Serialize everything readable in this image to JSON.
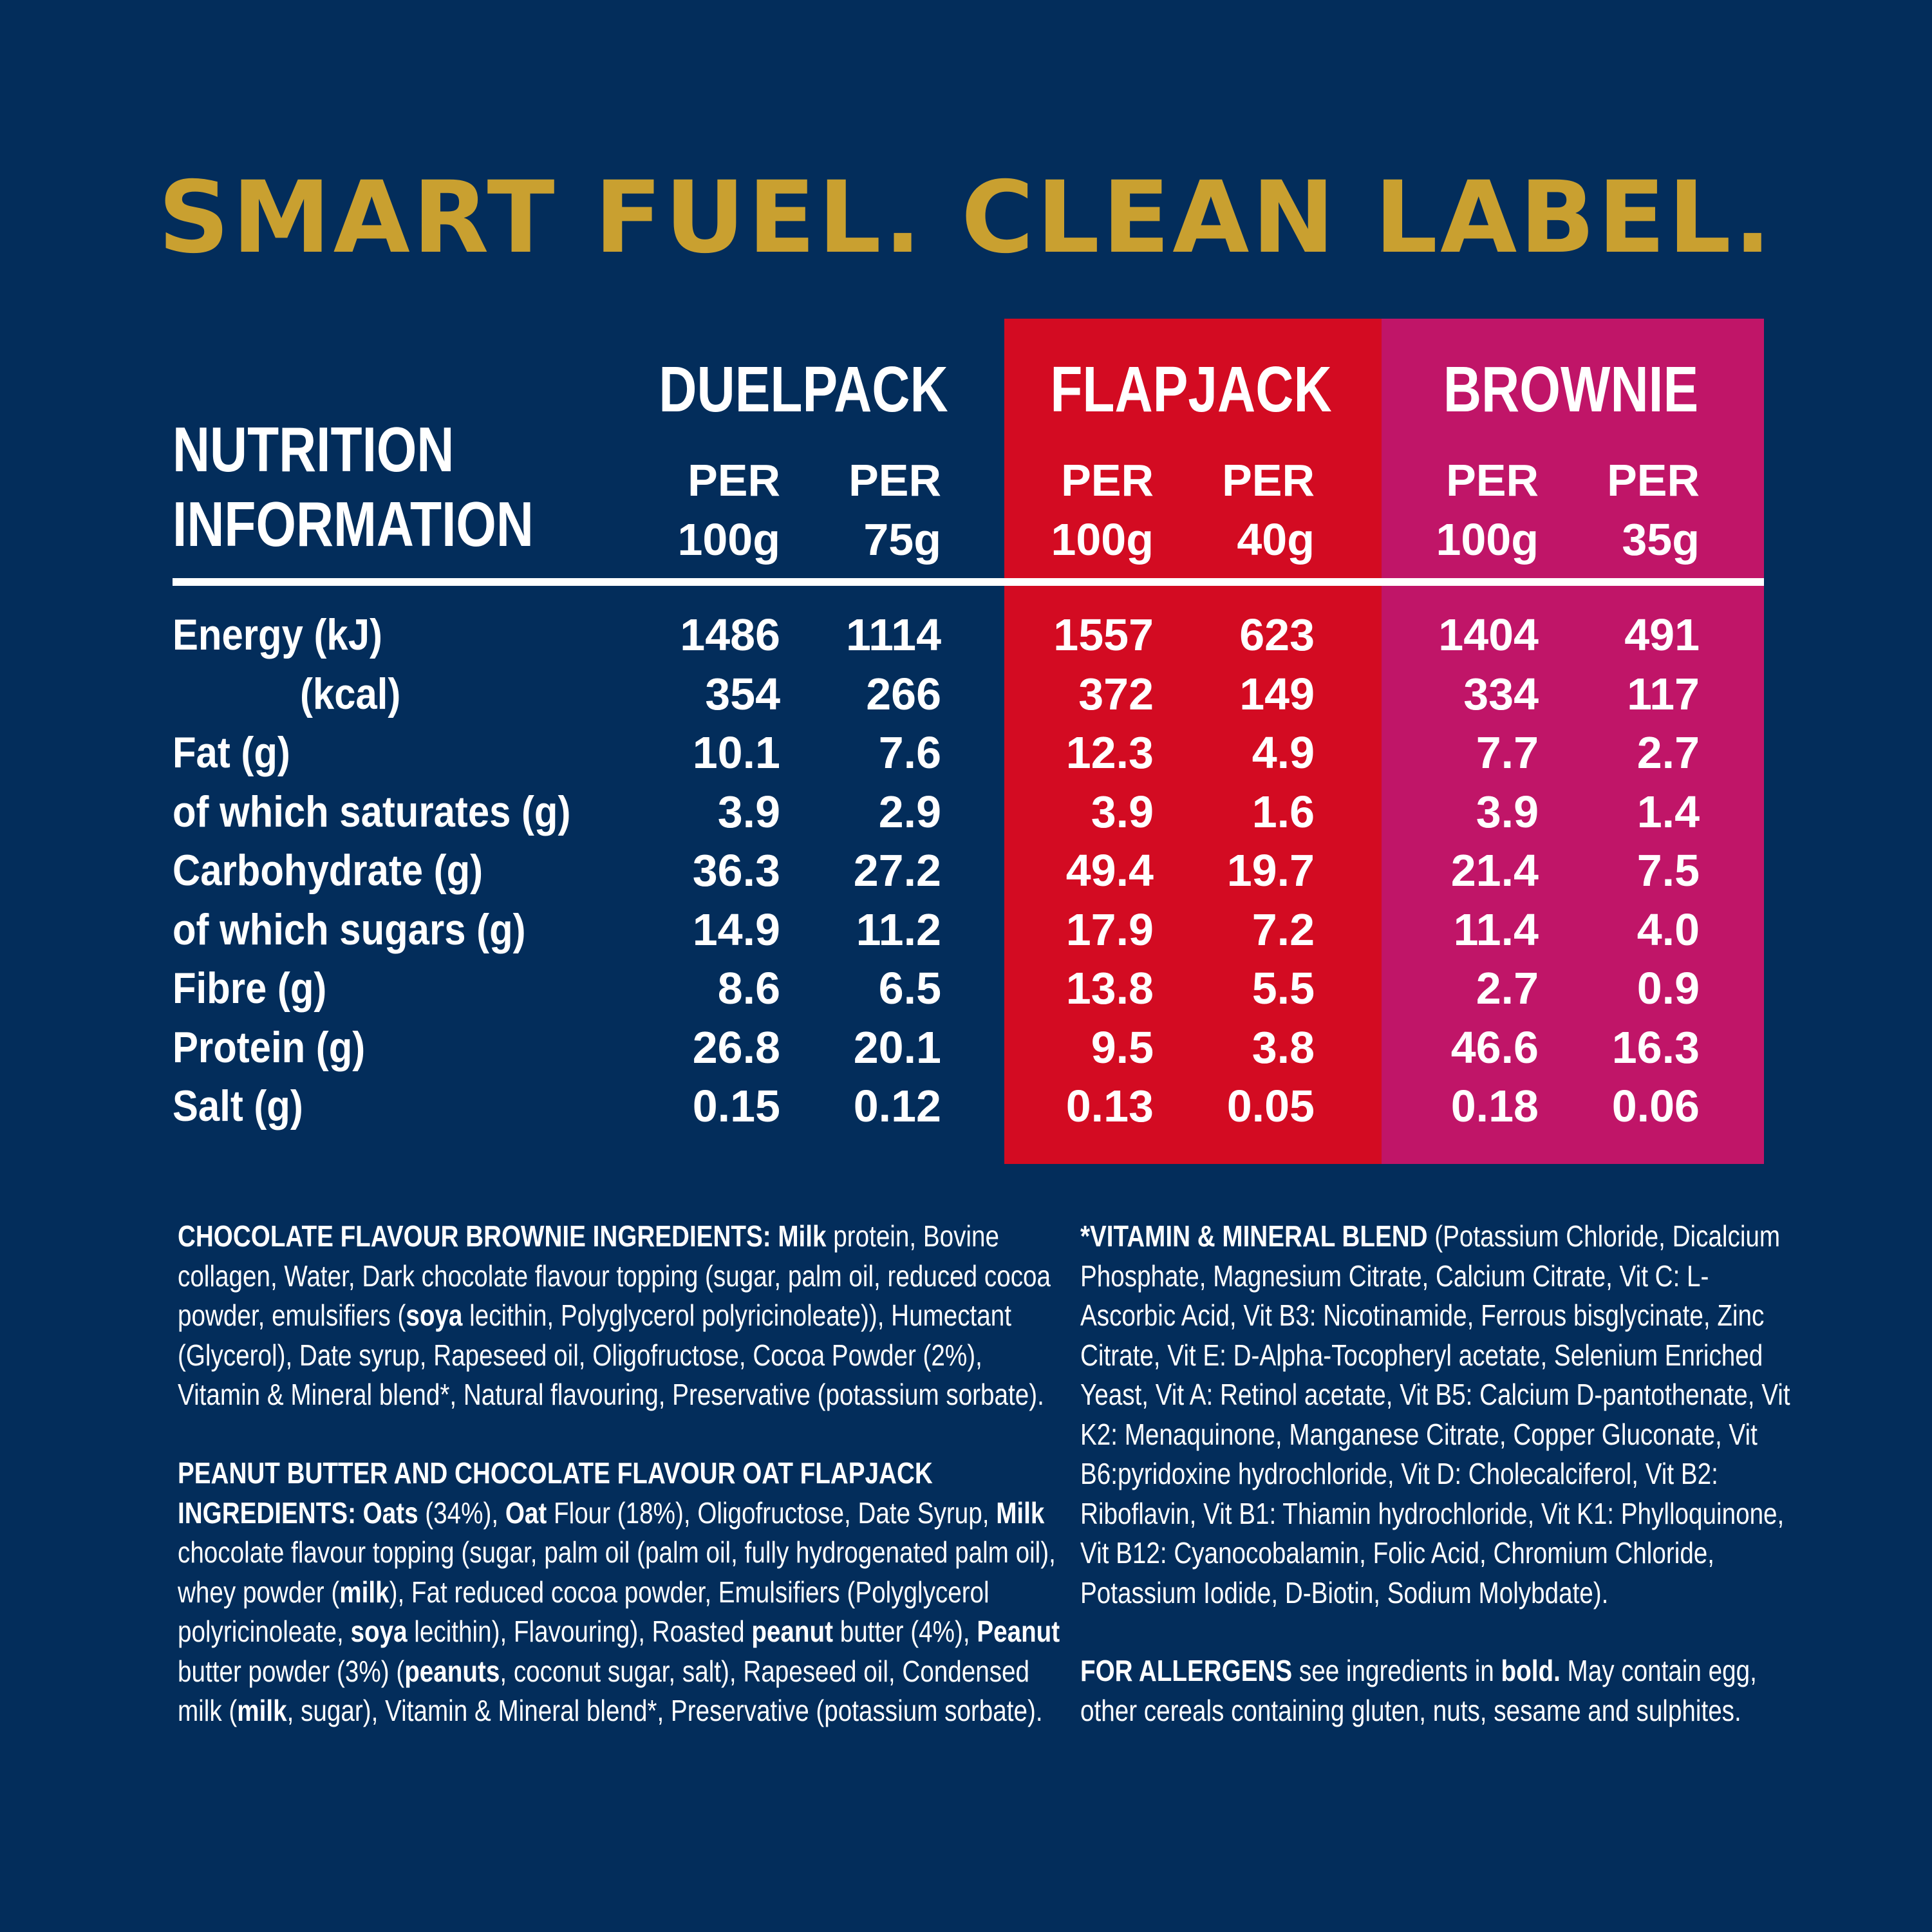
{
  "headline": "SMART FUEL. CLEAN LABEL.",
  "colors": {
    "background": "#032d5b",
    "headline": "#c9a030",
    "flapjack_column": "#d30b22",
    "brownie_column": "#c01568"
  },
  "nutrition": {
    "title_line1": "NUTRITION",
    "title_line2": "INFORMATION",
    "groups": [
      {
        "name": "DUELPACK",
        "sub": [
          {
            "top": "PER",
            "bottom": "100g"
          },
          {
            "top": "PER",
            "bottom": "75g"
          }
        ]
      },
      {
        "name": "FLAPJACK",
        "sub": [
          {
            "top": "PER",
            "bottom": "100g"
          },
          {
            "top": "PER",
            "bottom": "40g"
          }
        ]
      },
      {
        "name": "BROWNIE",
        "sub": [
          {
            "top": "PER",
            "bottom": "100g"
          },
          {
            "top": "PER",
            "bottom": "35g"
          }
        ]
      }
    ],
    "rows": [
      {
        "label": "Energy (kJ)",
        "values": [
          "1486",
          "1114",
          "1557",
          "623",
          "1404",
          "491"
        ]
      },
      {
        "label": "(kcal)",
        "values": [
          "354",
          "266",
          "372",
          "149",
          "334",
          "117"
        ]
      },
      {
        "label": "Fat (g)",
        "values": [
          "10.1",
          "7.6",
          "12.3",
          "4.9",
          "7.7",
          "2.7"
        ]
      },
      {
        "label": "of which saturates (g)",
        "values": [
          "3.9",
          "2.9",
          "3.9",
          "1.6",
          "3.9",
          "1.4"
        ]
      },
      {
        "label": "Carbohydrate (g)",
        "values": [
          "36.3",
          "27.2",
          "49.4",
          "19.7",
          "21.4",
          "7.5"
        ]
      },
      {
        "label": "of which sugars (g)",
        "values": [
          "14.9",
          "11.2",
          "17.9",
          "7.2",
          "11.4",
          "4.0"
        ]
      },
      {
        "label": "Fibre (g)",
        "values": [
          "8.6",
          "6.5",
          "13.8",
          "5.5",
          "2.7",
          "0.9"
        ]
      },
      {
        "label": "Protein (g)",
        "values": [
          "26.8",
          "20.1",
          "9.5",
          "3.8",
          "46.6",
          "16.3"
        ]
      },
      {
        "label": "Salt (g)",
        "values": [
          "0.15",
          "0.12",
          "0.13",
          "0.05",
          "0.18",
          "0.06"
        ]
      }
    ]
  },
  "ingredients": {
    "brownie": [
      {
        "t": "CHOCOLATE FLAVOUR BROWNIE INGREDIENTS: Milk",
        "b": true
      },
      {
        "t": " protein, Bovine collagen, Water, Dark chocolate flavour topping (sugar, palm oil, reduced cocoa powder, emulsifiers (",
        "b": false
      },
      {
        "t": "soya",
        "b": true
      },
      {
        "t": " lecithin, Polyglycerol polyricinoleate)), Humectant (Glycerol), Date syrup, Rapeseed oil, Oligofructose, Cocoa Powder (2%), Vitamin & Mineral blend*, Natural flavouring, Preservative (potassium sorbate).",
        "b": false
      }
    ],
    "flapjack": [
      {
        "t": "PEANUT BUTTER AND CHOCOLATE FLAVOUR OAT FLAPJACK INGREDIENTS: Oats",
        "b": true
      },
      {
        "t": " (34%), ",
        "b": false
      },
      {
        "t": "Oat",
        "b": true
      },
      {
        "t": " Flour (18%), Oligofructose, Date Syrup, ",
        "b": false
      },
      {
        "t": "Milk",
        "b": true
      },
      {
        "t": " chocolate flavour topping (sugar, palm oil (palm oil, fully hydrogenated palm oil), whey powder (",
        "b": false
      },
      {
        "t": "milk",
        "b": true
      },
      {
        "t": "), Fat reduced cocoa powder, Emulsifiers (Polyglycerol polyricinoleate, ",
        "b": false
      },
      {
        "t": "soya",
        "b": true
      },
      {
        "t": " lecithin), Flavouring), Roasted ",
        "b": false
      },
      {
        "t": "peanut",
        "b": true
      },
      {
        "t": " butter (4%), ",
        "b": false
      },
      {
        "t": "Peanut",
        "b": true
      },
      {
        "t": " butter powder (3%) (",
        "b": false
      },
      {
        "t": "peanuts",
        "b": true
      },
      {
        "t": ", coconut sugar, salt), Rapeseed oil, Condensed milk (",
        "b": false
      },
      {
        "t": "milk",
        "b": true
      },
      {
        "t": ", sugar), Vitamin & Mineral blend*, Preservative (potassium sorbate).",
        "b": false
      }
    ],
    "vitamin": [
      {
        "t": "*VITAMIN & MINERAL BLEND",
        "b": true
      },
      {
        "t": " (Potassium Chloride, Dicalcium Phosphate, Magnesium Citrate, Calcium Citrate, Vit C: L-Ascorbic Acid, Vit B3: Nicotinamide, Ferrous bisglycinate, Zinc Citrate, Vit E: D-Alpha-Tocopheryl acetate, Selenium Enriched Yeast, Vit A: Retinol acetate, Vit B5: Calcium D-pantothenate, Vit K2: Menaquinone, Manganese Citrate, Copper Gluconate, Vit B6:pyridoxine hydrochloride, Vit D: Cholecalciferol, Vit B2: Riboflavin, Vit B1: Thiamin hydrochloride, Vit K1: Phylloquinone, Vit B12: Cyanocobalamin, Folic Acid, Chromium Chloride, Potassium Iodide, D-Biotin, Sodium Molybdate).",
        "b": false
      }
    ],
    "allergens": [
      {
        "t": "FOR ALLERGENS",
        "b": true
      },
      {
        "t": " see ingredients in ",
        "b": false
      },
      {
        "t": "bold.",
        "b": true
      },
      {
        "t": " May contain egg, other cereals containing gluten, nuts, sesame and sulphites.",
        "b": false
      }
    ]
  }
}
